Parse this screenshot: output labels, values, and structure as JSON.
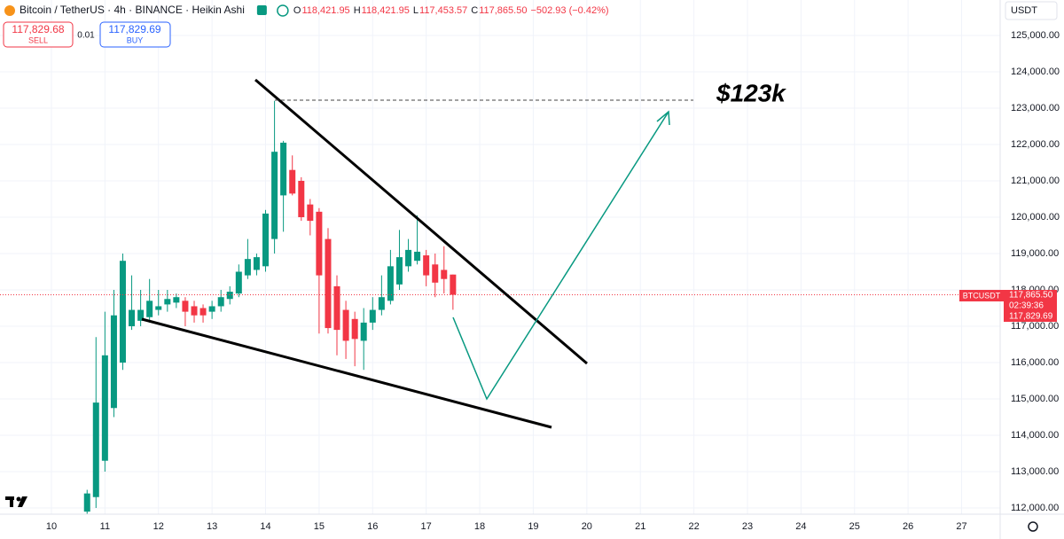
{
  "header": {
    "title": "Bitcoin / TetherUS · 4h · BINANCE · Heikin Ashi",
    "ohlc": [
      {
        "key": "O",
        "value": "118,421.95"
      },
      {
        "key": "H",
        "value": "118,421.95"
      },
      {
        "key": "L",
        "value": "117,453.57"
      },
      {
        "key": "C",
        "value": "117,865.50"
      }
    ],
    "change": "−502.93 (−0.42%)",
    "sell_price": "117,829.68",
    "sell": "SELL",
    "spread": "0.01",
    "buy_price": "117,829.69",
    "buy": "BUY",
    "currency": "USDT"
  },
  "price_label": {
    "symbol": "BTCUSDT",
    "price": "117,865.50",
    "countdown": "02:39:36",
    "buy_price": "117,829.69"
  },
  "chart_data": {
    "type": "candlestick",
    "up_color": "#089981",
    "down_color": "#f23645",
    "annotation": "$123k",
    "grid": true,
    "x": [
      10.667,
      10.833,
      11,
      11.167,
      11.333,
      11.5,
      11.667,
      11.833,
      12,
      12.167,
      12.333,
      12.5,
      12.667,
      12.833,
      13,
      13.167,
      13.333,
      13.5,
      13.667,
      13.833,
      14,
      14.167,
      14.333,
      14.5,
      14.667,
      14.833,
      15,
      15.167,
      15.333,
      15.5,
      15.667,
      15.833,
      16,
      16.167,
      16.333,
      16.5,
      16.667,
      16.833,
      17,
      17.167,
      17.333,
      17.5
    ],
    "open": [
      111900,
      112300,
      113300,
      114750,
      116000,
      117000,
      117150,
      117250,
      117450,
      117600,
      117650,
      117700,
      117550,
      117500,
      117400,
      117550,
      117750,
      117900,
      118400,
      118550,
      118650,
      119400,
      120600,
      121300,
      121000,
      120350,
      120150,
      119400,
      118100,
      117450,
      117200,
      116600,
      117100,
      117450,
      117700,
      118150,
      118650,
      118800,
      118950,
      118700,
      118550,
      118421.95
    ],
    "high": [
      112500,
      116700,
      117400,
      118000,
      119000,
      118400,
      118000,
      118300,
      118000,
      118000,
      117900,
      117800,
      117700,
      117600,
      117700,
      118000,
      118100,
      118700,
      119400,
      119000,
      120200,
      123200,
      122100,
      121700,
      121100,
      120500,
      120250,
      119700,
      118400,
      117700,
      117400,
      117500,
      117800,
      118400,
      119100,
      119650,
      119400,
      120050,
      119100,
      119000,
      119200,
      118421.95
    ],
    "low": [
      111830,
      112000,
      113000,
      114500,
      115800,
      116900,
      117000,
      117100,
      117300,
      117400,
      117500,
      117000,
      117100,
      117100,
      117200,
      117400,
      117600,
      117800,
      118300,
      118400,
      118500,
      119000,
      119600,
      120600,
      119900,
      119500,
      116800,
      116800,
      116200,
      116100,
      115900,
      115800,
      116900,
      117300,
      117600,
      118000,
      118500,
      118700,
      118100,
      117800,
      117900,
      117453.57
    ],
    "close": [
      112400,
      114900,
      116200,
      117300,
      118800,
      117450,
      117450,
      117700,
      117550,
      117750,
      117800,
      117400,
      117300,
      117300,
      117550,
      117800,
      117950,
      118500,
      118850,
      118900,
      120100,
      121800,
      122050,
      120650,
      120000,
      119900,
      118400,
      116950,
      116900,
      116600,
      116650,
      117100,
      117450,
      117800,
      118650,
      118900,
      119100,
      119050,
      118400,
      118200,
      118300,
      117865.5
    ],
    "xlim": [
      9.04,
      27.72
    ],
    "xticks": [
      10,
      11,
      12,
      13,
      14,
      15,
      16,
      17,
      18,
      19,
      20,
      21,
      22,
      23,
      24,
      25,
      26,
      27
    ],
    "ylim": [
      111830,
      125975
    ],
    "yticks": [
      {
        "value": 112000,
        "label": "112,000.00"
      },
      {
        "value": 113000,
        "label": "113,000.00"
      },
      {
        "value": 114000,
        "label": "114,000.00"
      },
      {
        "value": 115000,
        "label": "115,000.00"
      },
      {
        "value": 116000,
        "label": "116,000.00"
      },
      {
        "value": 117000,
        "label": "117,000.00"
      },
      {
        "value": 118000,
        "label": "118,000.00"
      },
      {
        "value": 119000,
        "label": "119,000.00"
      },
      {
        "value": 120000,
        "label": "120,000.00"
      },
      {
        "value": 121000,
        "label": "121,000.00"
      },
      {
        "value": 122000,
        "label": "122,000.00"
      },
      {
        "value": 123000,
        "label": "123,000.00"
      },
      {
        "value": 124000,
        "label": "124,000.00"
      },
      {
        "value": 125000,
        "label": "125,000.00"
      }
    ]
  }
}
